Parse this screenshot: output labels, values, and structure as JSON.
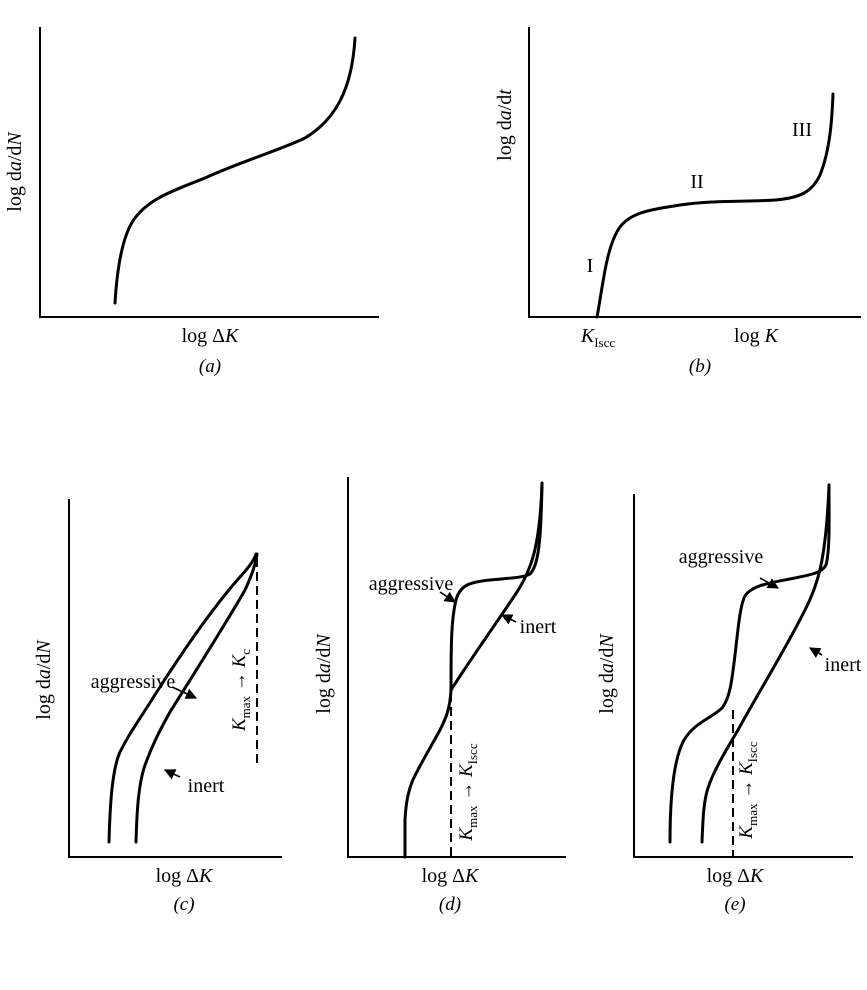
{
  "panel_a": {
    "ylabel_prefix": "log d",
    "ylabel_var1": "a",
    "ylabel_sep": "/d",
    "ylabel_var2": "N",
    "xlabel_prefix": "log Δ",
    "xlabel_var": "K",
    "caption": "(a)"
  },
  "panel_b": {
    "ylabel_prefix": "log d",
    "ylabel_var1": "a",
    "ylabel_sep": "/d",
    "ylabel_var2": "t",
    "xlabel_prefix": "log ",
    "xlabel_var": "K",
    "threshold_var": "K",
    "threshold_sub": "Iscc",
    "region_1": "I",
    "region_2": "II",
    "region_3": "III",
    "caption": "(b)"
  },
  "panel_c": {
    "ylabel_prefix": "log d",
    "ylabel_var1": "a",
    "ylabel_sep": "/d",
    "ylabel_var2": "N",
    "xlabel_prefix": "log Δ",
    "xlabel_var": "K",
    "curve_aggressive": "aggressive",
    "curve_inert": "inert",
    "dash_var": "K",
    "dash_sub": "max",
    "dash_arrow": " → ",
    "dash_target": "K",
    "dash_target_sub": "c",
    "caption": "(c)"
  },
  "panel_d": {
    "ylabel_prefix": "log d",
    "ylabel_var1": "a",
    "ylabel_sep": "/d",
    "ylabel_var2": "N",
    "xlabel_prefix": "log Δ",
    "xlabel_var": "K",
    "curve_aggressive": "aggressive",
    "curve_inert": "inert",
    "dash_var": "K",
    "dash_sub": "max",
    "dash_arrow": " → ",
    "dash_target": "K",
    "dash_target_sub": "Iscc",
    "caption": "(d)"
  },
  "panel_e": {
    "ylabel_prefix": "log d",
    "ylabel_var1": "a",
    "ylabel_sep": "/d",
    "ylabel_var2": "N",
    "xlabel_prefix": "log Δ",
    "xlabel_var": "K",
    "curve_aggressive": "aggressive",
    "curve_inert": "inert",
    "dash_var": "K",
    "dash_sub": "max",
    "dash_arrow": " → ",
    "dash_target": "K",
    "dash_target_sub": "Iscc",
    "caption": "(e)"
  }
}
